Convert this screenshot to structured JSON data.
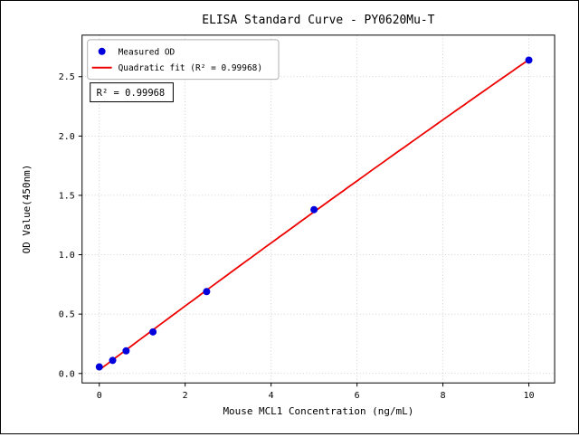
{
  "chart_data": {
    "type": "scatter",
    "title": "ELISA Standard Curve - PY0620Mu-T",
    "xlabel": "Mouse MCL1 Concentration (ng/mL)",
    "ylabel": "OD Value(450nm)",
    "series": [
      {
        "name": "Measured OD",
        "type": "scatter",
        "color": "#0000dd",
        "x": [
          0,
          0.3125,
          0.625,
          1.25,
          2.5,
          5,
          10
        ],
        "y": [
          0.055,
          0.11,
          0.19,
          0.35,
          0.69,
          1.38,
          2.64
        ]
      },
      {
        "name": "Quadratic fit (R² = 0.99968)",
        "type": "quadratic-fit",
        "color": "#ee0000"
      }
    ],
    "annotation": "R² = 0.99968",
    "r_squared": 0.99968,
    "xlim": [
      -0.4,
      10.6
    ],
    "ylim": [
      -0.08,
      2.85
    ],
    "xticks": [
      0,
      2,
      4,
      6,
      8,
      10
    ],
    "xtick_labels": [
      "0",
      "2",
      "4",
      "6",
      "8",
      "10"
    ],
    "yticks": [
      0,
      0.5,
      1,
      1.5,
      2,
      2.5
    ],
    "ytick_labels": [
      "0.0",
      "0.5",
      "1.0",
      "1.5",
      "2.0",
      "2.5"
    ],
    "grid": true,
    "legend_position": "upper left",
    "colors": {
      "points": "#0000dd",
      "fit_line": "#ee0000",
      "grid": "#c4c4c4",
      "legend_border": "#b0b0b0",
      "annotation_border": "#000000"
    }
  }
}
